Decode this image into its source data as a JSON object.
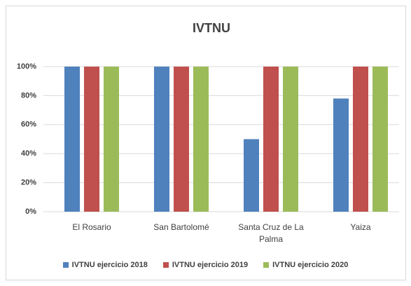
{
  "chart_data": {
    "type": "bar",
    "title": "IVTNU",
    "categories": [
      "El Rosario",
      "San Bartolomé",
      "Santa Cruz de La Palma",
      "Yaiza"
    ],
    "series": [
      {
        "name": "IVTNU ejercicio 2018",
        "color": "#4f81bd",
        "values": [
          100,
          100,
          50,
          78
        ]
      },
      {
        "name": "IVTNU ejercicio 2019",
        "color": "#c0504d",
        "values": [
          100,
          100,
          100,
          100
        ]
      },
      {
        "name": "IVTNU ejercicio 2020",
        "color": "#9bbb59",
        "values": [
          100,
          100,
          100,
          100
        ]
      }
    ],
    "ylim": [
      0,
      100
    ],
    "yticks": [
      {
        "value": 0,
        "label": "0%"
      },
      {
        "value": 20,
        "label": "20%"
      },
      {
        "value": 40,
        "label": "40%"
      },
      {
        "value": 60,
        "label": "60%"
      },
      {
        "value": 80,
        "label": "80%"
      },
      {
        "value": 100,
        "label": "100%"
      }
    ],
    "grid": true,
    "legend": "bottom"
  }
}
